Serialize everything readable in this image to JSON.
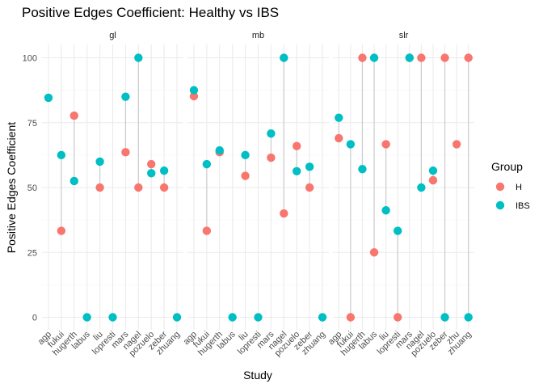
{
  "chart_data": {
    "type": "scatter",
    "title": "Positive Edges Coefficient: Healthy vs IBS",
    "xlabel": "Study",
    "ylabel": "Positive Edges Coefficient",
    "ylim": [
      0,
      100
    ],
    "yticks": [
      0,
      25,
      50,
      75,
      100
    ],
    "grid": true,
    "legend_position": "right",
    "legend_title": "Group",
    "categories": [
      "agp",
      "fukui",
      "hugerth",
      "labus",
      "liu",
      "lopresti",
      "mars",
      "nagel",
      "pozuelo",
      "zeber",
      "zhuang"
    ],
    "series": [
      {
        "name": "H",
        "color": "#F8766D"
      },
      {
        "name": "IBS",
        "color": "#00BFC4"
      }
    ],
    "facets": [
      {
        "label": "gl",
        "points": [
          {
            "study": "agp",
            "H": null,
            "IBS": 84.6
          },
          {
            "study": "fukui",
            "H": 33.3,
            "IBS": 62.5
          },
          {
            "study": "hugerth",
            "H": 77.7,
            "IBS": 52.5
          },
          {
            "study": "labus",
            "H": null,
            "IBS": 0
          },
          {
            "study": "liu",
            "H": 50,
            "IBS": 60
          },
          {
            "study": "lopresti",
            "H": null,
            "IBS": 0
          },
          {
            "study": "mars",
            "H": 63.6,
            "IBS": 85
          },
          {
            "study": "nagel",
            "H": 50,
            "IBS": 100
          },
          {
            "study": "pozuelo",
            "H": 59,
            "IBS": 55.5
          },
          {
            "study": "zeber",
            "H": 50,
            "IBS": 56.5
          },
          {
            "study": "zhuang",
            "H": null,
            "IBS": 0
          }
        ]
      },
      {
        "label": "mb",
        "points": [
          {
            "study": "agp",
            "H": 85.2,
            "IBS": 87.5
          },
          {
            "study": "fukui",
            "H": 33.3,
            "IBS": 59
          },
          {
            "study": "hugerth",
            "H": 63.6,
            "IBS": 64.3
          },
          {
            "study": "labus",
            "H": null,
            "IBS": 0
          },
          {
            "study": "liu",
            "H": 54.5,
            "IBS": 62.5
          },
          {
            "study": "lopresti",
            "H": null,
            "IBS": 0
          },
          {
            "study": "mars",
            "H": 61.5,
            "IBS": 70.8
          },
          {
            "study": "nagel",
            "H": 40,
            "IBS": 100
          },
          {
            "study": "pozuelo",
            "H": 66,
            "IBS": 56.3
          },
          {
            "study": "zeber",
            "H": 50,
            "IBS": 58
          },
          {
            "study": "zhuang",
            "H": null,
            "IBS": 0
          }
        ]
      },
      {
        "label": "slr",
        "points": [
          {
            "study": "agp",
            "H": 69,
            "IBS": 76.9
          },
          {
            "study": "fukui",
            "H": 0,
            "IBS": 66.7
          },
          {
            "study": "hugerth",
            "H": 100,
            "IBS": 57.1
          },
          {
            "study": "labus",
            "H": 25,
            "IBS": 100
          },
          {
            "study": "liu",
            "H": 66.7,
            "IBS": 41.2
          },
          {
            "study": "lopresti",
            "H": 0,
            "IBS": 33.3
          },
          {
            "study": "mars",
            "H": 100,
            "IBS": 100
          },
          {
            "study": "nagel",
            "H": 100,
            "IBS": 50
          },
          {
            "study": "pozuelo",
            "H": 52.8,
            "IBS": 56.5
          },
          {
            "study": "zeber",
            "H": 100,
            "IBS": 0
          },
          {
            "study": "zhu",
            "H": 66.7,
            "IBS": null
          },
          {
            "study": "zhuang",
            "H": 100,
            "IBS": 0
          }
        ]
      }
    ]
  }
}
